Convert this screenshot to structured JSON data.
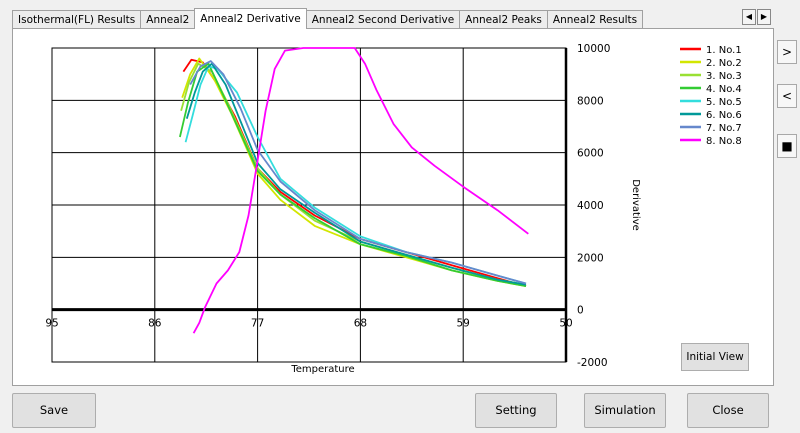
{
  "tabs": [
    {
      "label": "Isothermal(FL) Results",
      "active": false
    },
    {
      "label": "Anneal2",
      "active": false
    },
    {
      "label": "Anneal2 Derivative",
      "active": true
    },
    {
      "label": "Anneal2 Second Derivative",
      "active": false
    },
    {
      "label": "Anneal2 Peaks",
      "active": false
    },
    {
      "label": "Anneal2 Results",
      "active": false
    }
  ],
  "icons": {
    "tab_left": "triangle-left-icon",
    "tab_right": "triangle-right-icon",
    "side_right": "chevron-right-icon",
    "side_left": "chevron-left-icon",
    "side_square": "square-icon"
  },
  "buttons": {
    "initial_view": "Initial View",
    "save": "Save",
    "setting": "Setting",
    "simulation": "Simulation",
    "close": "Close"
  },
  "chart_data": {
    "type": "line",
    "xlabel": "Temperature",
    "ylabel": "Derivative",
    "x_ticks": [
      95,
      86,
      77,
      68,
      59,
      50
    ],
    "y_ticks": [
      10000,
      8000,
      6000,
      4000,
      2000,
      0,
      -2000
    ],
    "xlim": [
      95,
      50
    ],
    "ylim": [
      -2000,
      10000
    ],
    "x_reversed": true,
    "grid": true,
    "legend_position": "right",
    "series": [
      {
        "name": "1. No.1",
        "color": "#ff0000",
        "points": [
          [
            83.5,
            9100
          ],
          [
            82.8,
            9550
          ],
          [
            81.8,
            9450
          ],
          [
            80.5,
            8600
          ],
          [
            79,
            7400
          ],
          [
            77,
            5400
          ],
          [
            75,
            4500
          ],
          [
            72,
            3600
          ],
          [
            68,
            2700
          ],
          [
            64,
            2200
          ],
          [
            60,
            1700
          ],
          [
            56,
            1200
          ],
          [
            53.5,
            900
          ]
        ]
      },
      {
        "name": "2. No.2",
        "color": "#d2e600",
        "points": [
          [
            83.6,
            8100
          ],
          [
            82.9,
            9000
          ],
          [
            82.1,
            9600
          ],
          [
            80.8,
            8800
          ],
          [
            79.3,
            7500
          ],
          [
            77,
            5200
          ],
          [
            75,
            4200
          ],
          [
            72,
            3200
          ],
          [
            68,
            2500
          ],
          [
            64,
            2000
          ],
          [
            60,
            1500
          ],
          [
            56,
            1100
          ],
          [
            53.5,
            900
          ]
        ]
      },
      {
        "name": "3. No.3",
        "color": "#99e033",
        "points": [
          [
            83.7,
            7600
          ],
          [
            83,
            8700
          ],
          [
            82.2,
            9400
          ],
          [
            81,
            9100
          ],
          [
            79.5,
            7800
          ],
          [
            77,
            5400
          ],
          [
            75,
            4400
          ],
          [
            72,
            3400
          ],
          [
            68,
            2600
          ],
          [
            64,
            2100
          ],
          [
            60,
            1600
          ],
          [
            56,
            1150
          ],
          [
            53.5,
            950
          ]
        ]
      },
      {
        "name": "4. No.4",
        "color": "#33cc33",
        "points": [
          [
            83.8,
            6600
          ],
          [
            83.1,
            7900
          ],
          [
            82.3,
            9100
          ],
          [
            81.3,
            9400
          ],
          [
            79.8,
            8000
          ],
          [
            77,
            5300
          ],
          [
            75,
            4400
          ],
          [
            72,
            3500
          ],
          [
            68,
            2500
          ],
          [
            64,
            2050
          ],
          [
            60,
            1500
          ],
          [
            56,
            1100
          ],
          [
            53.5,
            900
          ]
        ]
      },
      {
        "name": "5. No.5",
        "color": "#33dddd",
        "points": [
          [
            83.3,
            6400
          ],
          [
            82.7,
            7400
          ],
          [
            82,
            8600
          ],
          [
            81.3,
            9300
          ],
          [
            80.5,
            9200
          ],
          [
            78.8,
            8300
          ],
          [
            77,
            6600
          ],
          [
            75,
            5000
          ],
          [
            72,
            3900
          ],
          [
            68,
            2800
          ],
          [
            64,
            2200
          ],
          [
            60,
            1800
          ],
          [
            56,
            1300
          ],
          [
            53.5,
            1000
          ]
        ]
      },
      {
        "name": "6. No.6",
        "color": "#009999",
        "points": [
          [
            83.2,
            7300
          ],
          [
            82.5,
            8300
          ],
          [
            81.8,
            9100
          ],
          [
            81,
            9400
          ],
          [
            79.8,
            8600
          ],
          [
            77,
            5600
          ],
          [
            75,
            4600
          ],
          [
            72,
            3700
          ],
          [
            68,
            2600
          ],
          [
            64,
            2100
          ],
          [
            60,
            1600
          ],
          [
            56,
            1150
          ],
          [
            53.5,
            950
          ]
        ]
      },
      {
        "name": "7. No.7",
        "color": "#6688cc",
        "points": [
          [
            82.9,
            8600
          ],
          [
            82,
            9300
          ],
          [
            81.1,
            9500
          ],
          [
            80,
            9000
          ],
          [
            78.5,
            7700
          ],
          [
            77,
            6100
          ],
          [
            75,
            4900
          ],
          [
            72,
            3800
          ],
          [
            68,
            2700
          ],
          [
            64,
            2200
          ],
          [
            60,
            1800
          ],
          [
            56,
            1300
          ],
          [
            53.5,
            1000
          ]
        ]
      },
      {
        "name": "8. No.8",
        "color": "#ff00ff",
        "points": [
          [
            82.6,
            -900
          ],
          [
            82.1,
            -500
          ],
          [
            81.6,
            100
          ],
          [
            80.6,
            1000
          ],
          [
            79.6,
            1500
          ],
          [
            78.6,
            2200
          ],
          [
            77.8,
            3600
          ],
          [
            77,
            5700
          ],
          [
            76.3,
            7600
          ],
          [
            75.5,
            9200
          ],
          [
            74.6,
            9900
          ],
          [
            73,
            10000
          ],
          [
            70.5,
            10000
          ],
          [
            68.5,
            10000
          ],
          [
            67.6,
            9400
          ],
          [
            66.6,
            8400
          ],
          [
            65.1,
            7100
          ],
          [
            63.5,
            6200
          ],
          [
            61.5,
            5500
          ],
          [
            59,
            4700
          ],
          [
            56,
            3800
          ],
          [
            53.3,
            2900
          ]
        ]
      }
    ]
  }
}
